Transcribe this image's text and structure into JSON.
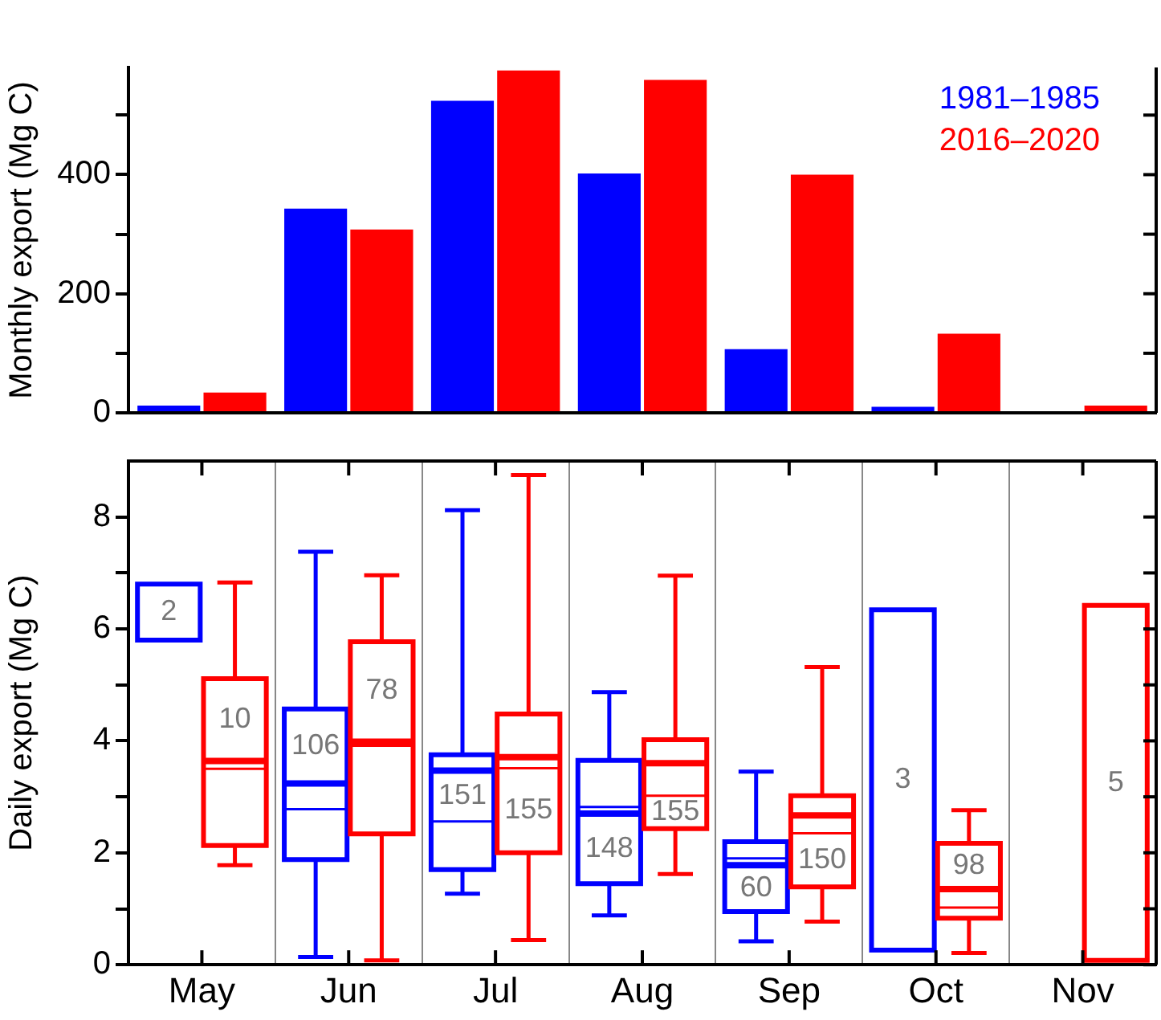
{
  "chart_data": [
    {
      "type": "bar",
      "ylabel": "Monthly export (Mg C)",
      "categories": [
        null,
        null,
        null,
        null,
        null,
        null,
        null
      ],
      "series": [
        {
          "name": "1981–1985",
          "color": "#0000ff",
          "values": [
            12,
            343,
            524,
            402,
            107,
            10,
            0
          ]
        },
        {
          "name": "2016–2020",
          "color": "#ff0000",
          "values": [
            34,
            308,
            575,
            559,
            400,
            133,
            12
          ]
        }
      ],
      "ylim": [
        0,
        580
      ],
      "yticks": [
        0,
        {
          "value": 100,
          "label": null
        },
        200,
        {
          "value": 300,
          "label": null
        },
        400,
        {
          "value": 500,
          "label": null
        }
      ],
      "tick_labels": "y",
      "legend": "top right"
    },
    {
      "type": "box",
      "ylabel": "Daily export (Mg C)",
      "categories": [
        "May",
        "Jun",
        "Jul",
        "Aug",
        "Sep",
        "Oct",
        "Nov"
      ],
      "series": [
        {
          "color": "#0000ff",
          "value_labels": [
            "2",
            "106",
            "151",
            "148",
            "60",
            "3",
            null
          ],
          "boxes": [
            {
              "low": 5.8,
              "q1": 5.8,
              "median": null,
              "q3": 6.8,
              "high": 6.8
            },
            {
              "low": 0.14,
              "q1": 1.88,
              "median": 3.24,
              "q3": 4.57,
              "high": 7.38,
              "mean": 2.78
            },
            {
              "low": 1.27,
              "q1": 1.7,
              "median": 3.47,
              "q3": 3.75,
              "high": 8.12,
              "mean": 2.56
            },
            {
              "low": 0.88,
              "q1": 1.45,
              "median": 2.7,
              "q3": 3.65,
              "high": 4.87,
              "mean": 2.82
            },
            {
              "low": 0.42,
              "q1": 0.95,
              "median": 1.78,
              "q3": 2.2,
              "high": 3.45,
              "mean": 1.9
            },
            {
              "low": 0.26,
              "q1": 0.26,
              "median": null,
              "q3": 6.34,
              "high": 6.34
            },
            null
          ]
        },
        {
          "color": "#ff0000",
          "value_labels": [
            "10",
            "78",
            "155",
            "155",
            "150",
            "98",
            "5"
          ],
          "boxes": [
            {
              "low": 1.78,
              "q1": 2.13,
              "median": 3.64,
              "q3": 5.11,
              "high": 6.83,
              "mean": 3.5
            },
            {
              "low": 0.08,
              "q1": 2.34,
              "median": 3.95,
              "q3": 5.77,
              "high": 6.96,
              "mean": 4.02
            },
            {
              "low": 0.44,
              "q1": 2.0,
              "median": 3.71,
              "q3": 4.48,
              "high": 8.75,
              "mean": 3.51
            },
            {
              "low": 1.62,
              "q1": 2.43,
              "median": 3.6,
              "q3": 4.02,
              "high": 6.95,
              "mean": 3.02
            },
            {
              "low": 0.77,
              "q1": 1.39,
              "median": 2.67,
              "q3": 3.02,
              "high": 5.32,
              "mean": 2.35
            },
            {
              "low": 0.21,
              "q1": 0.83,
              "median": 1.35,
              "q3": 2.17,
              "high": 2.76,
              "mean": 1.02
            },
            {
              "low": 0.08,
              "q1": 0.08,
              "median": null,
              "q3": 6.42,
              "high": 6.42
            }
          ]
        }
      ],
      "ylim": [
        0,
        9
      ],
      "yticks": [
        0,
        {
          "value": 1,
          "label": null
        },
        2,
        {
          "value": 3,
          "label": null
        },
        4,
        {
          "value": 5,
          "label": null
        },
        6,
        {
          "value": 7,
          "label": null
        },
        8
      ],
      "grid": "x"
    }
  ]
}
